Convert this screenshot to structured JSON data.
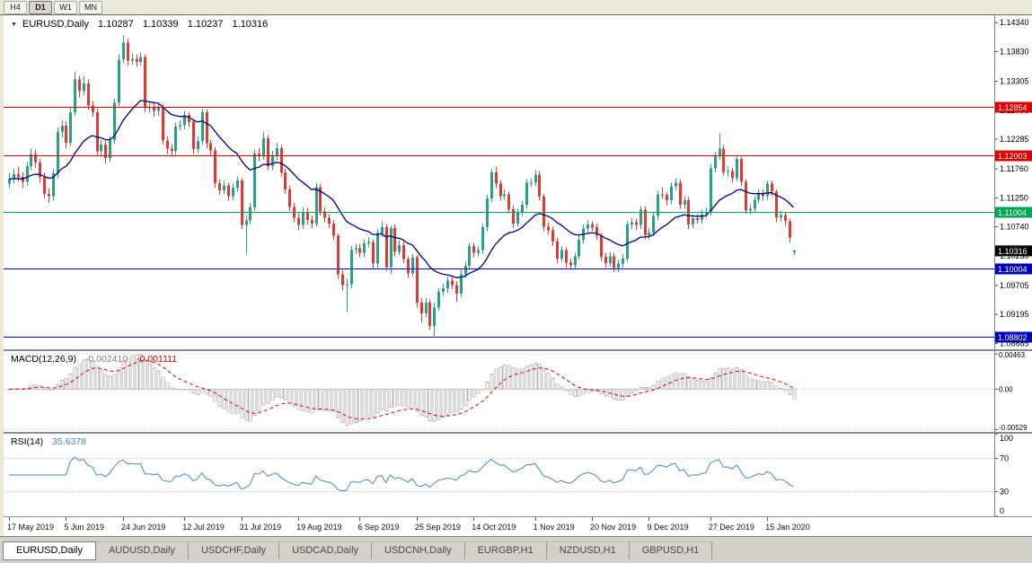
{
  "toolbar": {
    "timeframes": [
      "H4",
      "D1",
      "W1",
      "MN"
    ],
    "active": "D1"
  },
  "chart": {
    "symbol_label": "EURUSD,Daily",
    "ohlc": {
      "open": "1.10287",
      "high": "1.10339",
      "low": "1.10237",
      "close": "1.10316"
    },
    "price_axis_labels": [
      "1.14340",
      "1.13830",
      "1.13305",
      "1.12795",
      "1.12285",
      "1.11760",
      "1.11250",
      "1.10740",
      "1.10230",
      "1.09705",
      "1.09195",
      "1.08685"
    ],
    "levels": [
      {
        "value": 1.12854,
        "label": "1.12854",
        "color": "#dd0000"
      },
      {
        "value": 1.12003,
        "label": "1.12003",
        "color": "#dd0000"
      },
      {
        "value": 1.11004,
        "label": "1.11004",
        "color": "#00a651"
      },
      {
        "value": 1.10004,
        "label": "1.10004",
        "color": "#0000bb"
      },
      {
        "value": 1.08802,
        "label": "1.08802",
        "color": "#0000bb"
      }
    ],
    "current_price": {
      "value": 1.10316,
      "label": "1.10316"
    }
  },
  "macd": {
    "label": "MACD(12,26,9)",
    "main_value": "-0.002410",
    "signal_value": "-0.001111",
    "axis_labels": [
      "0.00463",
      "0.00",
      "-0.00529"
    ]
  },
  "rsi": {
    "label": "RSI(14)",
    "value": "35.6378",
    "axis_labels": [
      "100",
      "70",
      "30",
      "0"
    ],
    "levels": [
      70,
      30
    ]
  },
  "date_axis": [
    {
      "label": "17 May 2019",
      "bar": 0
    },
    {
      "label": "5 Jun 2019",
      "bar": 13
    },
    {
      "label": "24 Jun 2019",
      "bar": 26
    },
    {
      "label": "12 Jul 2019",
      "bar": 40
    },
    {
      "label": "31 Jul 2019",
      "bar": 53
    },
    {
      "label": "19 Aug 2019",
      "bar": 66
    },
    {
      "label": "6 Sep 2019",
      "bar": 80
    },
    {
      "label": "25 Sep 2019",
      "bar": 93
    },
    {
      "label": "14 Oct 2019",
      "bar": 106
    },
    {
      "label": "1 Nov 2019",
      "bar": 120
    },
    {
      "label": "20 Nov 2019",
      "bar": 133
    },
    {
      "label": "9 Dec 2019",
      "bar": 146
    },
    {
      "label": "27 Dec 2019",
      "bar": 160
    },
    {
      "label": "15 Jan 2020",
      "bar": 173
    }
  ],
  "tabs": [
    {
      "label": "EURUSD,Daily",
      "active": true
    },
    {
      "label": "AUDUSD,Daily",
      "active": false
    },
    {
      "label": "USDCHF,Daily",
      "active": false
    },
    {
      "label": "USDCAD,Daily",
      "active": false
    },
    {
      "label": "USDCNH,Daily",
      "active": false
    },
    {
      "label": "EURGBP,H1",
      "active": false
    },
    {
      "label": "NZDUSD,H1",
      "active": false
    },
    {
      "label": "GBPUSD,H1",
      "active": false
    }
  ],
  "chart_data": {
    "type": "candlestick",
    "title": "EURUSD,Daily",
    "ylim": [
      1.0858,
      1.1447
    ],
    "colors": {
      "up": "#2ba089",
      "down": "#dd3b34",
      "ma": "#000080",
      "macd_hist": "#b8b8b8",
      "macd_signal": "#dd0000",
      "rsi": "#4a86c4"
    },
    "candles": [
      [
        1.115,
        1.1168,
        1.1142,
        1.1158
      ],
      [
        1.1158,
        1.1176,
        1.115,
        1.1167
      ],
      [
        1.1167,
        1.118,
        1.1154,
        1.1162
      ],
      [
        1.1162,
        1.117,
        1.1142,
        1.1153
      ],
      [
        1.1153,
        1.1188,
        1.1146,
        1.1181
      ],
      [
        1.1181,
        1.1212,
        1.1174,
        1.1202
      ],
      [
        1.1202,
        1.121,
        1.1178,
        1.1187
      ],
      [
        1.1187,
        1.1194,
        1.1152,
        1.1162
      ],
      [
        1.1162,
        1.117,
        1.1124,
        1.1132
      ],
      [
        1.1132,
        1.1142,
        1.1116,
        1.1128
      ],
      [
        1.1128,
        1.1176,
        1.112,
        1.1168
      ],
      [
        1.1168,
        1.125,
        1.116,
        1.1241
      ],
      [
        1.1241,
        1.1262,
        1.1232,
        1.1252
      ],
      [
        1.1252,
        1.126,
        1.1212,
        1.1222
      ],
      [
        1.1222,
        1.1284,
        1.1216,
        1.1276
      ],
      [
        1.1276,
        1.1348,
        1.127,
        1.1334
      ],
      [
        1.1334,
        1.134,
        1.1302,
        1.1313
      ],
      [
        1.1313,
        1.1339,
        1.1306,
        1.1327
      ],
      [
        1.1327,
        1.1334,
        1.128,
        1.1288
      ],
      [
        1.1288,
        1.1296,
        1.1268,
        1.1276
      ],
      [
        1.1276,
        1.1282,
        1.12,
        1.1207
      ],
      [
        1.1207,
        1.1228,
        1.12,
        1.1219
      ],
      [
        1.1219,
        1.1226,
        1.1186,
        1.1195
      ],
      [
        1.1195,
        1.1234,
        1.1188,
        1.1227
      ],
      [
        1.1227,
        1.13,
        1.122,
        1.1293
      ],
      [
        1.1293,
        1.1378,
        1.1286,
        1.1369
      ],
      [
        1.1369,
        1.1412,
        1.1362,
        1.1399
      ],
      [
        1.1399,
        1.1406,
        1.1358,
        1.1367
      ],
      [
        1.1367,
        1.138,
        1.136,
        1.137
      ],
      [
        1.137,
        1.1378,
        1.1356,
        1.1365
      ],
      [
        1.1365,
        1.1381,
        1.1358,
        1.1373
      ],
      [
        1.1373,
        1.1378,
        1.1276,
        1.1285
      ],
      [
        1.1285,
        1.1294,
        1.1275,
        1.1285
      ],
      [
        1.1285,
        1.1292,
        1.1268,
        1.1278
      ],
      [
        1.1278,
        1.1293,
        1.127,
        1.1285
      ],
      [
        1.1285,
        1.129,
        1.1219,
        1.1226
      ],
      [
        1.1226,
        1.1234,
        1.1202,
        1.1212
      ],
      [
        1.1212,
        1.122,
        1.1198,
        1.1208
      ],
      [
        1.1208,
        1.1258,
        1.12,
        1.1251
      ],
      [
        1.1251,
        1.1262,
        1.1244,
        1.1253
      ],
      [
        1.1253,
        1.1278,
        1.1246,
        1.1271
      ],
      [
        1.1271,
        1.1276,
        1.125,
        1.1259
      ],
      [
        1.1259,
        1.1264,
        1.1202,
        1.1211
      ],
      [
        1.1211,
        1.1234,
        1.1204,
        1.1225
      ],
      [
        1.1225,
        1.1282,
        1.1218,
        1.1276
      ],
      [
        1.1276,
        1.1281,
        1.1213,
        1.1221
      ],
      [
        1.1221,
        1.1228,
        1.12,
        1.1209
      ],
      [
        1.1209,
        1.1214,
        1.1143,
        1.1151
      ],
      [
        1.1151,
        1.1158,
        1.113,
        1.1138
      ],
      [
        1.1138,
        1.1155,
        1.1132,
        1.1147
      ],
      [
        1.1147,
        1.1152,
        1.112,
        1.1128
      ],
      [
        1.1128,
        1.115,
        1.1121,
        1.1143
      ],
      [
        1.1143,
        1.1163,
        1.1136,
        1.1156
      ],
      [
        1.1156,
        1.116,
        1.107,
        1.1077
      ],
      [
        1.1077,
        1.1095,
        1.1027,
        1.1085
      ],
      [
        1.1085,
        1.1116,
        1.1078,
        1.1108
      ],
      [
        1.1108,
        1.121,
        1.1102,
        1.1203
      ],
      [
        1.1203,
        1.1213,
        1.119,
        1.12
      ],
      [
        1.12,
        1.1242,
        1.1192,
        1.123
      ],
      [
        1.123,
        1.1236,
        1.1174,
        1.1181
      ],
      [
        1.1181,
        1.1208,
        1.1174,
        1.1199
      ],
      [
        1.1199,
        1.1222,
        1.1192,
        1.1213
      ],
      [
        1.1213,
        1.1218,
        1.1162,
        1.117
      ],
      [
        1.117,
        1.1176,
        1.1132,
        1.114
      ],
      [
        1.114,
        1.1146,
        1.1102,
        1.1109
      ],
      [
        1.1109,
        1.1116,
        1.1082,
        1.109
      ],
      [
        1.109,
        1.1098,
        1.1068,
        1.1077
      ],
      [
        1.1077,
        1.1108,
        1.107,
        1.11
      ],
      [
        1.11,
        1.1107,
        1.1078,
        1.1086
      ],
      [
        1.1086,
        1.1094,
        1.1072,
        1.108
      ],
      [
        1.108,
        1.1152,
        1.1074,
        1.1144
      ],
      [
        1.1144,
        1.115,
        1.1094,
        1.1101
      ],
      [
        1.1101,
        1.1108,
        1.1082,
        1.109
      ],
      [
        1.109,
        1.1096,
        1.1072,
        1.108
      ],
      [
        1.108,
        1.1086,
        1.105,
        1.1058
      ],
      [
        1.1058,
        1.1062,
        1.0982,
        1.099
      ],
      [
        1.099,
        1.0998,
        1.0962,
        1.0971
      ],
      [
        1.0971,
        1.0982,
        1.0924,
        1.0973
      ],
      [
        1.0973,
        1.104,
        1.0966,
        1.1034
      ],
      [
        1.1034,
        1.1044,
        1.1026,
        1.1036
      ],
      [
        1.1036,
        1.1044,
        1.102,
        1.1028
      ],
      [
        1.1028,
        1.1052,
        1.102,
        1.1045
      ],
      [
        1.1045,
        1.1056,
        1.1038,
        1.1047
      ],
      [
        1.1047,
        1.1052,
        1.1,
        1.1009
      ],
      [
        1.1009,
        1.107,
        1.1002,
        1.1063
      ],
      [
        1.1063,
        1.1084,
        1.1056,
        1.1073
      ],
      [
        1.1073,
        1.1078,
        1.0996,
        1.1003
      ],
      [
        1.1003,
        1.1076,
        1.099,
        1.1072
      ],
      [
        1.1072,
        1.1078,
        1.1022,
        1.103
      ],
      [
        1.103,
        1.105,
        1.1024,
        1.1042
      ],
      [
        1.1042,
        1.1048,
        1.101,
        1.1017
      ],
      [
        1.1017,
        1.1022,
        1.0984,
        1.0992
      ],
      [
        1.0992,
        1.1026,
        1.0986,
        1.102
      ],
      [
        1.102,
        1.1024,
        1.0932,
        1.094
      ],
      [
        1.094,
        1.0948,
        1.0905,
        1.0921
      ],
      [
        1.0921,
        1.0948,
        1.0914,
        1.094
      ],
      [
        1.094,
        1.0946,
        1.0892,
        1.0899
      ],
      [
        1.0899,
        1.094,
        1.0879,
        1.0932
      ],
      [
        1.0932,
        1.0966,
        1.0926,
        1.0959
      ],
      [
        1.0959,
        1.0974,
        1.0952,
        1.0966
      ],
      [
        1.0966,
        1.0986,
        1.0958,
        1.0979
      ],
      [
        1.0979,
        1.0988,
        1.0964,
        1.0971
      ],
      [
        1.0971,
        1.0978,
        1.0941,
        1.0956
      ],
      [
        1.0956,
        1.0998,
        1.095,
        1.099
      ],
      [
        1.099,
        1.1012,
        1.0984,
        1.1005
      ],
      [
        1.1005,
        1.1046,
        1.0998,
        1.104
      ],
      [
        1.104,
        1.1046,
        1.102,
        1.1028
      ],
      [
        1.1028,
        1.104,
        1.1022,
        1.1033
      ],
      [
        1.1033,
        1.108,
        1.1026,
        1.1073
      ],
      [
        1.1073,
        1.113,
        1.1066,
        1.1124
      ],
      [
        1.1124,
        1.1176,
        1.1118,
        1.117
      ],
      [
        1.117,
        1.118,
        1.1142,
        1.115
      ],
      [
        1.115,
        1.1156,
        1.112,
        1.1128
      ],
      [
        1.1128,
        1.114,
        1.1122,
        1.1131
      ],
      [
        1.1131,
        1.1136,
        1.1098,
        1.1105
      ],
      [
        1.1105,
        1.1112,
        1.1072,
        1.108
      ],
      [
        1.108,
        1.1106,
        1.1074,
        1.1099
      ],
      [
        1.1099,
        1.112,
        1.1092,
        1.1113
      ],
      [
        1.1113,
        1.1158,
        1.1106,
        1.1152
      ],
      [
        1.1152,
        1.116,
        1.1144,
        1.1152
      ],
      [
        1.1152,
        1.1174,
        1.1146,
        1.1166
      ],
      [
        1.1166,
        1.1172,
        1.112,
        1.1127
      ],
      [
        1.1127,
        1.1132,
        1.1066,
        1.1074
      ],
      [
        1.1074,
        1.1082,
        1.106,
        1.1068
      ],
      [
        1.1068,
        1.1074,
        1.104,
        1.1048
      ],
      [
        1.1048,
        1.1054,
        1.101,
        1.1018
      ],
      [
        1.1018,
        1.104,
        1.1012,
        1.1033
      ],
      [
        1.1033,
        1.1038,
        1.1002,
        1.1011
      ],
      [
        1.1011,
        1.1018,
        1.0998,
        1.1006
      ],
      [
        1.1006,
        1.1028,
        1.1,
        1.1022
      ],
      [
        1.1022,
        1.1058,
        1.1016,
        1.1051
      ],
      [
        1.1051,
        1.1078,
        1.1044,
        1.1071
      ],
      [
        1.1071,
        1.1086,
        1.1064,
        1.1078
      ],
      [
        1.1078,
        1.1084,
        1.1066,
        1.1073
      ],
      [
        1.1073,
        1.108,
        1.105,
        1.1058
      ],
      [
        1.1058,
        1.1063,
        1.1014,
        1.1021
      ],
      [
        1.1021,
        1.1028,
        1.1002,
        1.101
      ],
      [
        1.101,
        1.103,
        1.1004,
        1.1022
      ],
      [
        1.1022,
        1.1028,
        1.0994,
        1.1001
      ],
      [
        1.1001,
        1.1016,
        1.0994,
        1.1009
      ],
      [
        1.1009,
        1.1026,
        1.1002,
        1.1018
      ],
      [
        1.1018,
        1.1084,
        1.1012,
        1.1078
      ],
      [
        1.1078,
        1.109,
        1.107,
        1.1082
      ],
      [
        1.1082,
        1.1088,
        1.1068,
        1.1077
      ],
      [
        1.1077,
        1.111,
        1.107,
        1.1104
      ],
      [
        1.1104,
        1.111,
        1.1052,
        1.1059
      ],
      [
        1.1059,
        1.1072,
        1.1052,
        1.1064
      ],
      [
        1.1064,
        1.11,
        1.1058,
        1.1093
      ],
      [
        1.1093,
        1.1138,
        1.1086,
        1.1131
      ],
      [
        1.1131,
        1.1144,
        1.1124,
        1.113
      ],
      [
        1.113,
        1.1136,
        1.1112,
        1.1121
      ],
      [
        1.1121,
        1.1152,
        1.1114,
        1.1145
      ],
      [
        1.1145,
        1.116,
        1.1138,
        1.1152
      ],
      [
        1.1152,
        1.1158,
        1.1106,
        1.1113
      ],
      [
        1.1113,
        1.1128,
        1.1106,
        1.1121
      ],
      [
        1.1121,
        1.1126,
        1.107,
        1.1078
      ],
      [
        1.1078,
        1.1096,
        1.1072,
        1.1089
      ],
      [
        1.1089,
        1.1096,
        1.108,
        1.1086
      ],
      [
        1.1086,
        1.1104,
        1.108,
        1.1096
      ],
      [
        1.1096,
        1.1108,
        1.109,
        1.11
      ],
      [
        1.11,
        1.1184,
        1.1094,
        1.1177
      ],
      [
        1.1177,
        1.1206,
        1.117,
        1.1199
      ],
      [
        1.1199,
        1.1239,
        1.1192,
        1.1212
      ],
      [
        1.1212,
        1.1218,
        1.1164,
        1.1171
      ],
      [
        1.1171,
        1.118,
        1.1162,
        1.1172
      ],
      [
        1.1172,
        1.1178,
        1.1152,
        1.116
      ],
      [
        1.116,
        1.12,
        1.1154,
        1.1194
      ],
      [
        1.1194,
        1.1198,
        1.1146,
        1.1153
      ],
      [
        1.1153,
        1.1158,
        1.1096,
        1.1103
      ],
      [
        1.1103,
        1.1114,
        1.1096,
        1.1106
      ],
      [
        1.1106,
        1.1128,
        1.11,
        1.1122
      ],
      [
        1.1122,
        1.114,
        1.1116,
        1.1134
      ],
      [
        1.1134,
        1.114,
        1.112,
        1.1128
      ],
      [
        1.1128,
        1.1156,
        1.1122,
        1.115
      ],
      [
        1.115,
        1.1156,
        1.1128,
        1.1136
      ],
      [
        1.1136,
        1.114,
        1.1082,
        1.109
      ],
      [
        1.109,
        1.1102,
        1.1084,
        1.1095
      ],
      [
        1.1095,
        1.11,
        1.1076,
        1.1084
      ],
      [
        1.1084,
        1.1088,
        1.1046,
        1.1055
      ],
      [
        1.1029,
        1.1034,
        1.1024,
        1.1032
      ]
    ]
  }
}
